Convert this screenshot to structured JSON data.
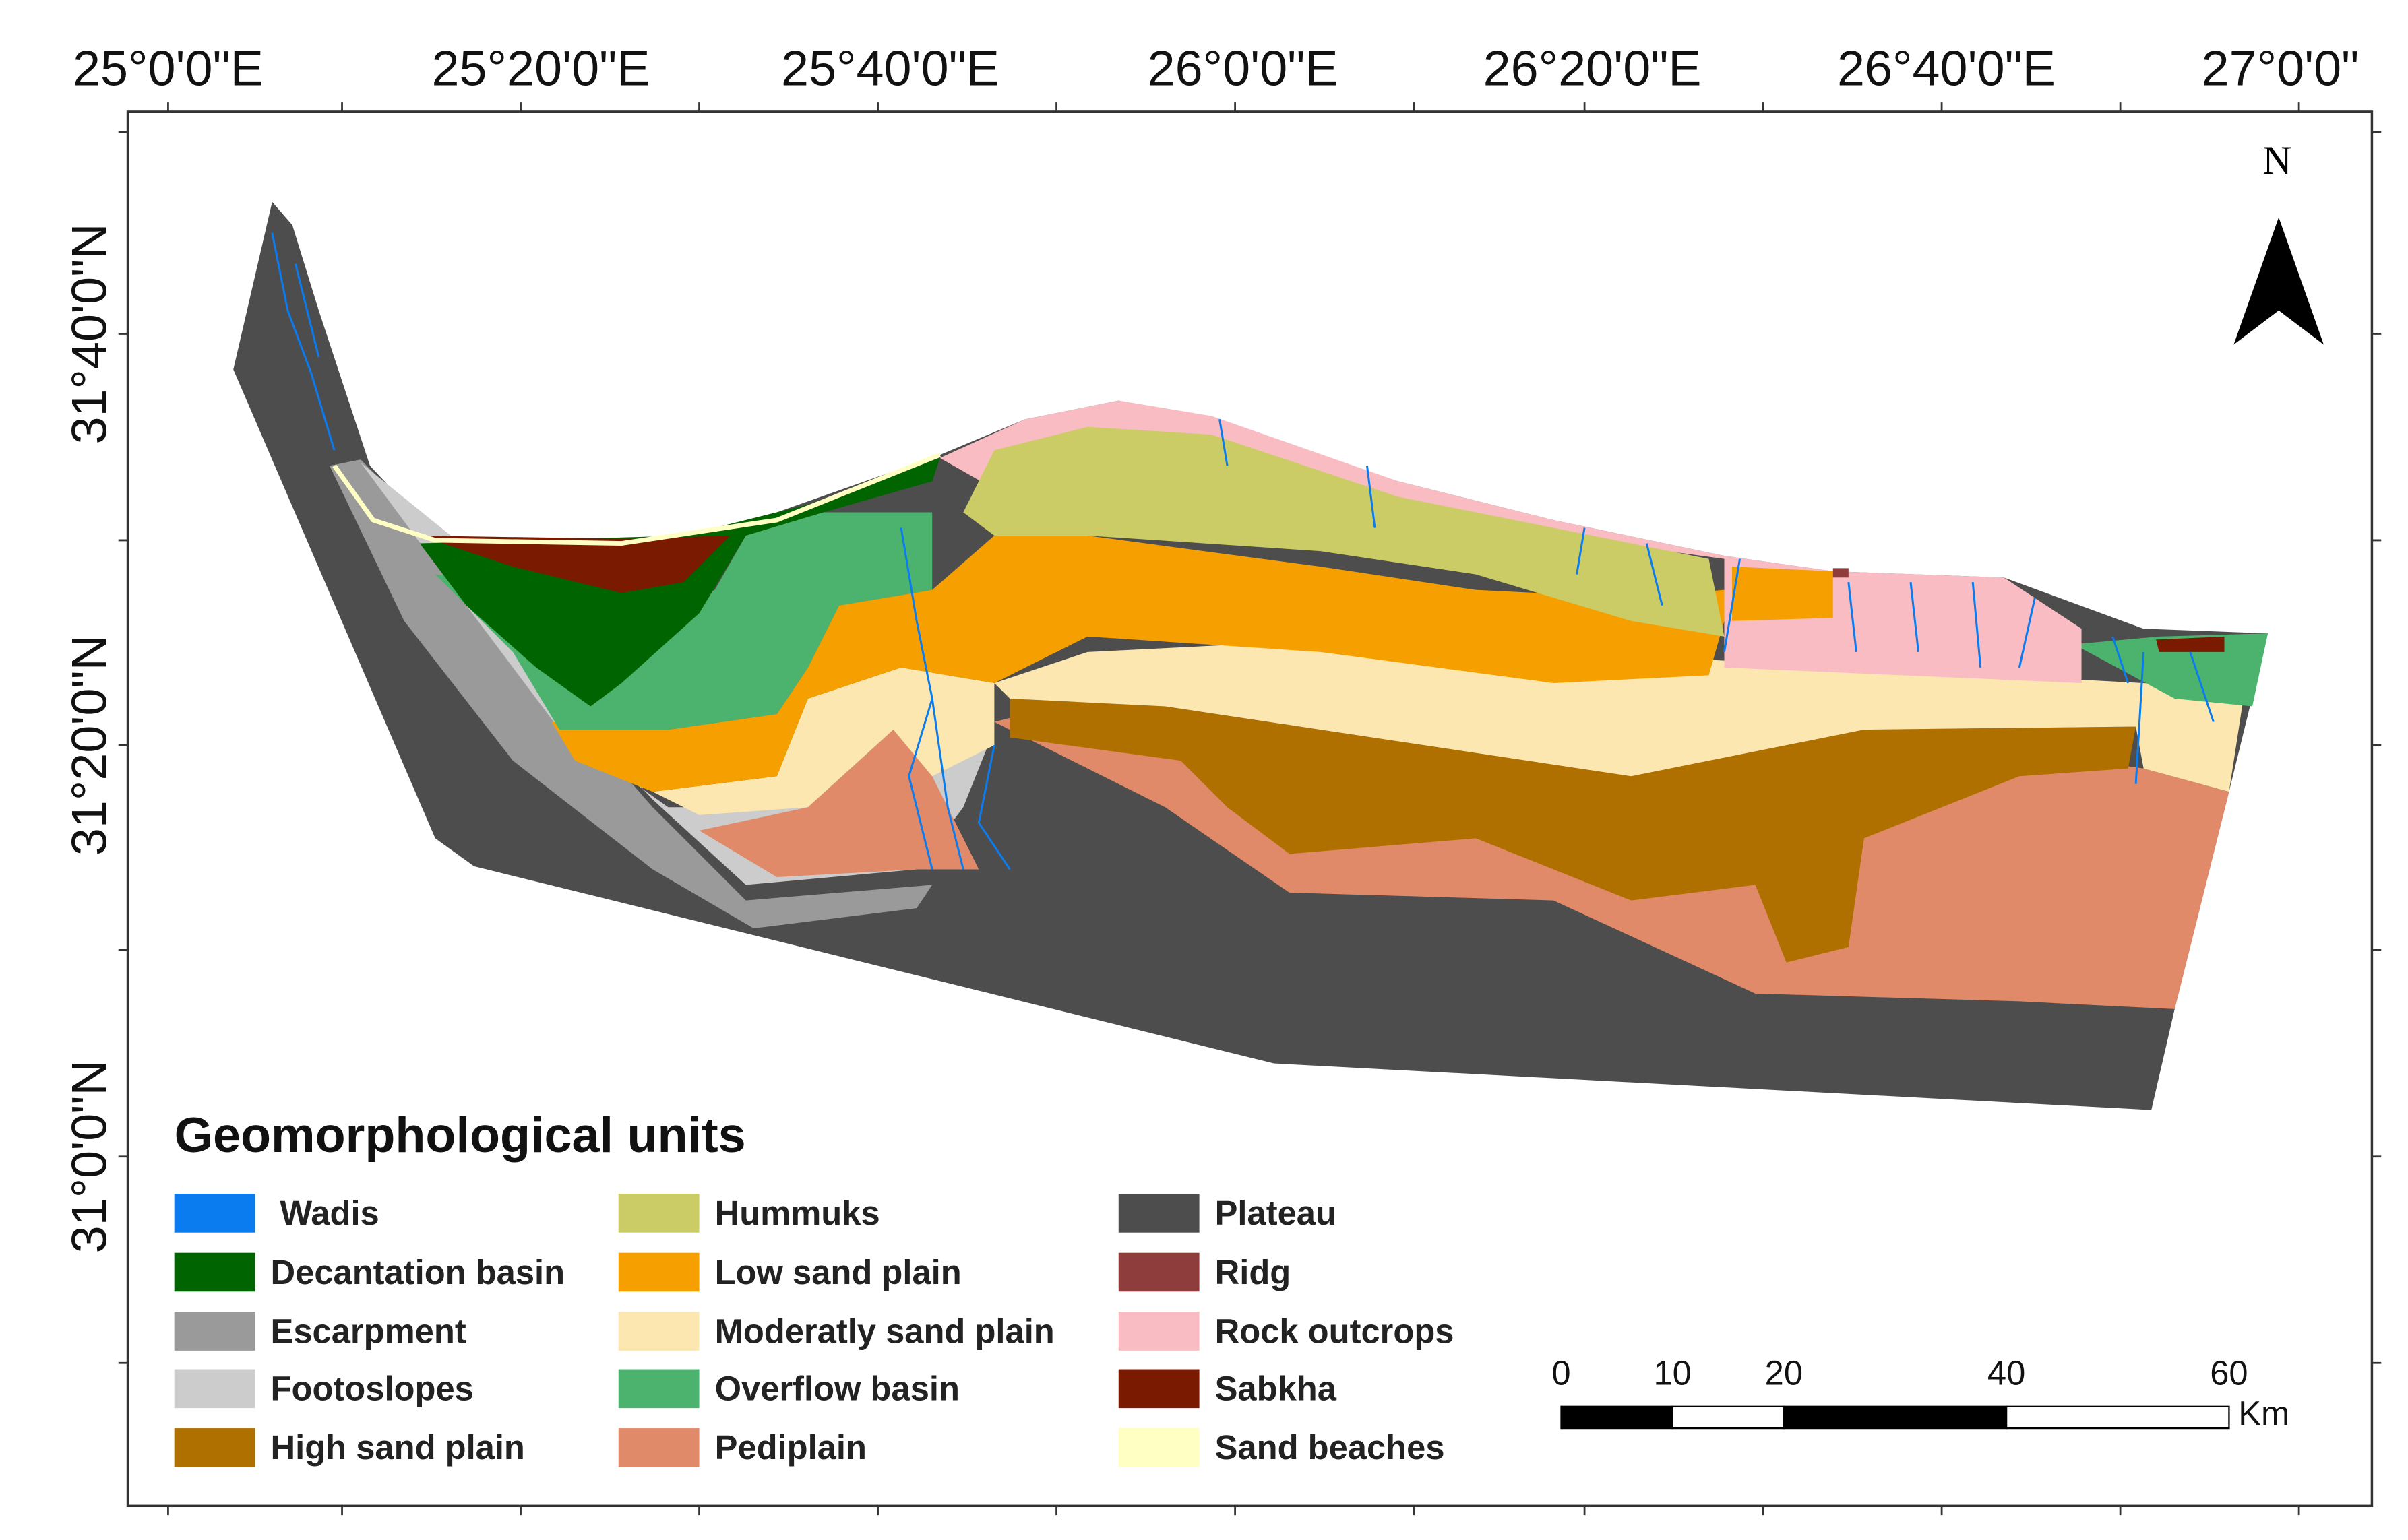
{
  "lon_labels": [
    "25°0'0\"E",
    "25°20'0\"E",
    "25°40'0\"E",
    "26°0'0\"E",
    "26°20'0\"E",
    "26°40'0\"E",
    "27°0'0\""
  ],
  "lat_labels": [
    "31°40'0\"N",
    "31°20'0\"N",
    "31°0'0\"N"
  ],
  "north_label": "N",
  "legend": {
    "title": "Geomorphological units",
    "items": [
      {
        "name": "Wadis",
        "color": "#0a7cf0"
      },
      {
        "name": "Decantation basin",
        "color": "#006400"
      },
      {
        "name": "Escarpment",
        "color": "#9a9a9a"
      },
      {
        "name": "Footoslopes",
        "color": "#cccccc"
      },
      {
        "name": "High sand plain",
        "color": "#b07000"
      },
      {
        "name": "Hummuks",
        "color": "#cccc66"
      },
      {
        "name": "Low sand plain",
        "color": "#f5a000"
      },
      {
        "name": "Moderatly sand plain",
        "color": "#fde7b0"
      },
      {
        "name": "Overflow basin",
        "color": "#4cb36e"
      },
      {
        "name": "Pediplain",
        "color": "#e08a6a"
      },
      {
        "name": "Plateau",
        "color": "#4d4d4d"
      },
      {
        "name": "Ridg",
        "color": "#8f3c3c"
      },
      {
        "name": "Rock outcrops",
        "color": "#f9bcc2"
      },
      {
        "name": "Sabkha",
        "color": "#7a1a00"
      },
      {
        "name": "Sand beaches",
        "color": "#ffffc4"
      }
    ]
  },
  "scale_bar": {
    "ticks": [
      0,
      10,
      20,
      40,
      60
    ],
    "unit": "Km"
  }
}
